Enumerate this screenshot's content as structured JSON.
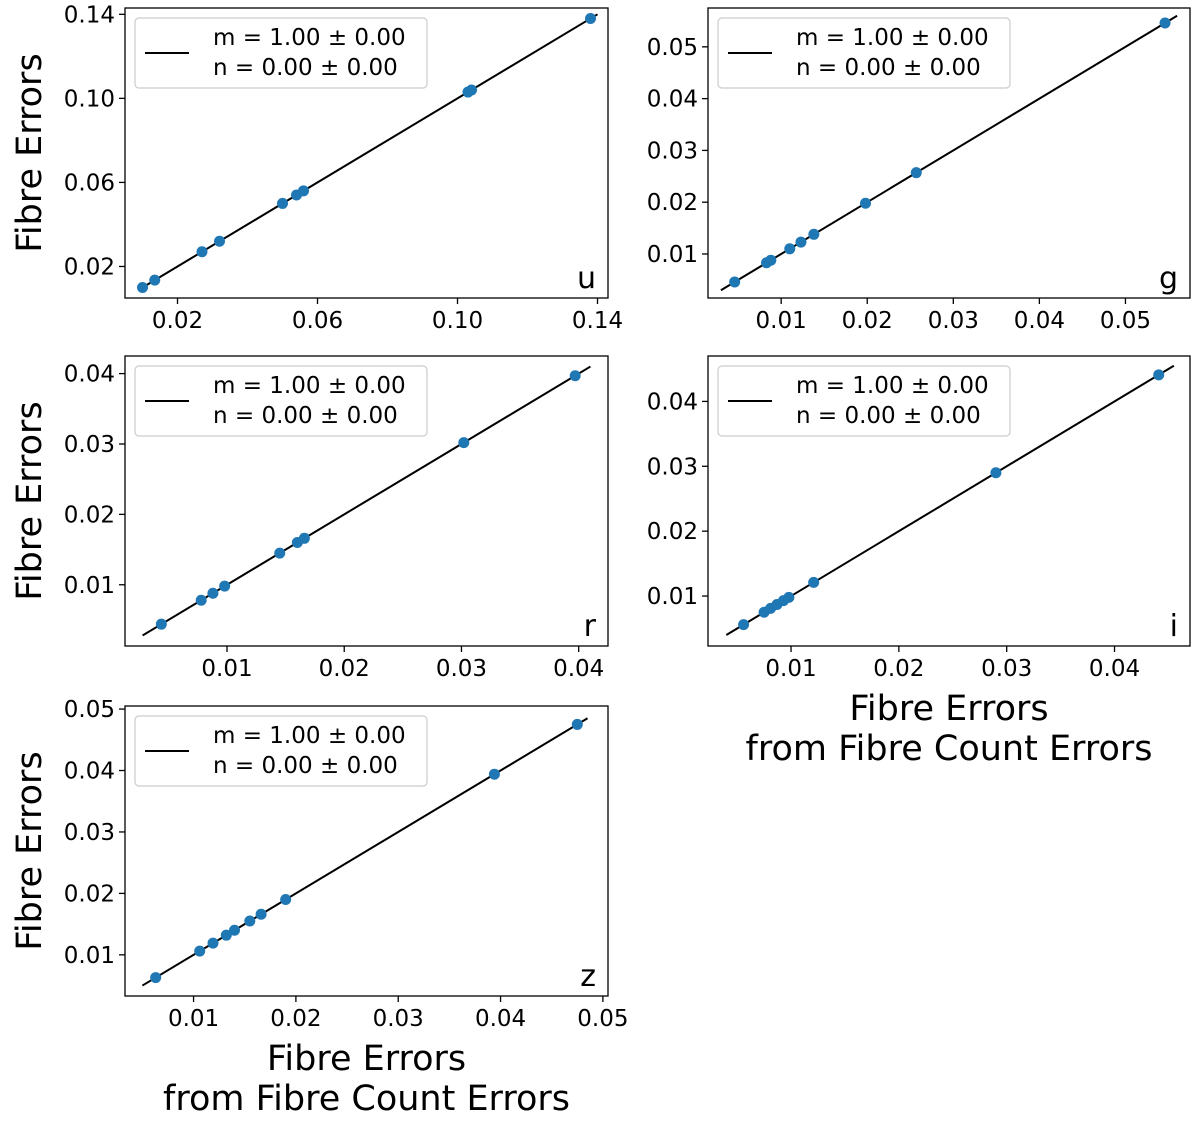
{
  "colors": {
    "points": "#1f77b4",
    "fit_line": "#000000",
    "axes": "#000000",
    "legend_frame": "#cccccc"
  },
  "chart_data": [
    {
      "type": "scatter",
      "band": "u",
      "xlim": [
        0.005,
        0.143
      ],
      "ylim": [
        0.005,
        0.143
      ],
      "xticks": [
        0.02,
        0.06,
        0.1,
        0.14
      ],
      "xtick_labels": [
        "0.02",
        "0.06",
        "0.10",
        "0.14"
      ],
      "yticks": [
        0.02,
        0.06,
        0.1,
        0.14
      ],
      "ytick_labels": [
        "0.02",
        "0.06",
        "0.10",
        "0.14"
      ],
      "ylabel": "Fibre Errors",
      "xlabel": "",
      "xlabel2": "",
      "legend": {
        "line1": "m = 1.00 ± 0.00",
        "line2": "n = 0.00 ± 0.00",
        "placement": "upper-left"
      },
      "fit": {
        "slope": 1.0,
        "intercept": 0.0,
        "x_range": [
          0.009,
          0.14
        ]
      },
      "x": [
        0.01,
        0.0135,
        0.027,
        0.032,
        0.05,
        0.054,
        0.056,
        0.103,
        0.104,
        0.138
      ],
      "y": [
        0.01,
        0.0135,
        0.027,
        0.032,
        0.05,
        0.054,
        0.056,
        0.103,
        0.104,
        0.138
      ]
    },
    {
      "type": "scatter",
      "band": "g",
      "xlim": [
        0.0015,
        0.0575
      ],
      "ylim": [
        0.0015,
        0.0575
      ],
      "xticks": [
        0.01,
        0.02,
        0.03,
        0.04,
        0.05
      ],
      "xtick_labels": [
        "0.01",
        "0.02",
        "0.03",
        "0.04",
        "0.05"
      ],
      "yticks": [
        0.01,
        0.02,
        0.03,
        0.04,
        0.05
      ],
      "ytick_labels": [
        "0.01",
        "0.02",
        "0.03",
        "0.04",
        "0.05"
      ],
      "ylabel": "",
      "xlabel": "",
      "xlabel2": "",
      "legend": {
        "line1": "m = 1.00 ± 0.00",
        "line2": "n = 0.00 ± 0.00",
        "placement": "upper-left"
      },
      "fit": {
        "slope": 1.0,
        "intercept": 0.0,
        "x_range": [
          0.003,
          0.056
        ]
      },
      "x": [
        0.0046,
        0.0083,
        0.0088,
        0.011,
        0.0123,
        0.0138,
        0.0198,
        0.0257,
        0.0546
      ],
      "y": [
        0.0046,
        0.0083,
        0.0088,
        0.011,
        0.0123,
        0.0138,
        0.0198,
        0.0257,
        0.0546
      ]
    },
    {
      "type": "scatter",
      "band": "r",
      "xlim": [
        0.0013,
        0.0425
      ],
      "ylim": [
        0.0013,
        0.0425
      ],
      "xticks": [
        0.01,
        0.02,
        0.03,
        0.04
      ],
      "xtick_labels": [
        "0.01",
        "0.02",
        "0.03",
        "0.04"
      ],
      "yticks": [
        0.01,
        0.02,
        0.03,
        0.04
      ],
      "ytick_labels": [
        "0.01",
        "0.02",
        "0.03",
        "0.04"
      ],
      "ylabel": "Fibre Errors",
      "xlabel": "",
      "xlabel2": "",
      "legend": {
        "line1": "m = 1.00 ± 0.00",
        "line2": "n = 0.00 ± 0.00",
        "placement": "upper-left"
      },
      "fit": {
        "slope": 1.0,
        "intercept": 0.0,
        "x_range": [
          0.0028,
          0.041
        ]
      },
      "x": [
        0.0044,
        0.0078,
        0.0088,
        0.0098,
        0.0145,
        0.016,
        0.0166,
        0.0302,
        0.0397
      ],
      "y": [
        0.0044,
        0.0078,
        0.0088,
        0.0098,
        0.0145,
        0.016,
        0.0166,
        0.0302,
        0.0397
      ]
    },
    {
      "type": "scatter",
      "band": "i",
      "xlim": [
        0.0023,
        0.047
      ],
      "ylim": [
        0.0023,
        0.047
      ],
      "xticks": [
        0.01,
        0.02,
        0.03,
        0.04
      ],
      "xtick_labels": [
        "0.01",
        "0.02",
        "0.03",
        "0.04"
      ],
      "yticks": [
        0.01,
        0.02,
        0.03,
        0.04
      ],
      "ytick_labels": [
        "0.01",
        "0.02",
        "0.03",
        "0.04"
      ],
      "ylabel": "",
      "xlabel": "Fibre Errors",
      "xlabel2": "from Fibre Count Errors",
      "legend": {
        "line1": "m = 1.00 ± 0.00",
        "line2": "n = 0.00 ± 0.00",
        "placement": "upper-left"
      },
      "fit": {
        "slope": 1.0,
        "intercept": 0.0,
        "x_range": [
          0.004,
          0.0455
        ]
      },
      "x": [
        0.0056,
        0.0075,
        0.0081,
        0.0087,
        0.0093,
        0.0098,
        0.0121,
        0.029,
        0.0441
      ],
      "y": [
        0.0056,
        0.0075,
        0.0081,
        0.0087,
        0.0093,
        0.0098,
        0.0121,
        0.029,
        0.0441
      ]
    },
    {
      "type": "scatter",
      "band": "z",
      "xlim": [
        0.0033,
        0.0505
      ],
      "ylim": [
        0.0033,
        0.0505
      ],
      "xticks": [
        0.01,
        0.02,
        0.03,
        0.04,
        0.05
      ],
      "xtick_labels": [
        "0.01",
        "0.02",
        "0.03",
        "0.04",
        "0.05"
      ],
      "yticks": [
        0.01,
        0.02,
        0.03,
        0.04,
        0.05
      ],
      "ytick_labels": [
        "0.01",
        "0.02",
        "0.03",
        "0.04",
        "0.05"
      ],
      "ylabel": "Fibre Errors",
      "xlabel": "Fibre Errors",
      "xlabel2": "from Fibre Count Errors",
      "legend": {
        "line1": "m = 1.00 ± 0.00",
        "line2": "n = 0.00 ± 0.00",
        "placement": "upper-left"
      },
      "fit": {
        "slope": 1.0,
        "intercept": 0.0,
        "x_range": [
          0.005,
          0.0485
        ]
      },
      "x": [
        0.0063,
        0.0106,
        0.0119,
        0.0132,
        0.014,
        0.0155,
        0.0166,
        0.019,
        0.0394,
        0.0475
      ],
      "y": [
        0.0063,
        0.0106,
        0.0119,
        0.0132,
        0.014,
        0.0155,
        0.0166,
        0.019,
        0.0394,
        0.0475
      ]
    }
  ]
}
